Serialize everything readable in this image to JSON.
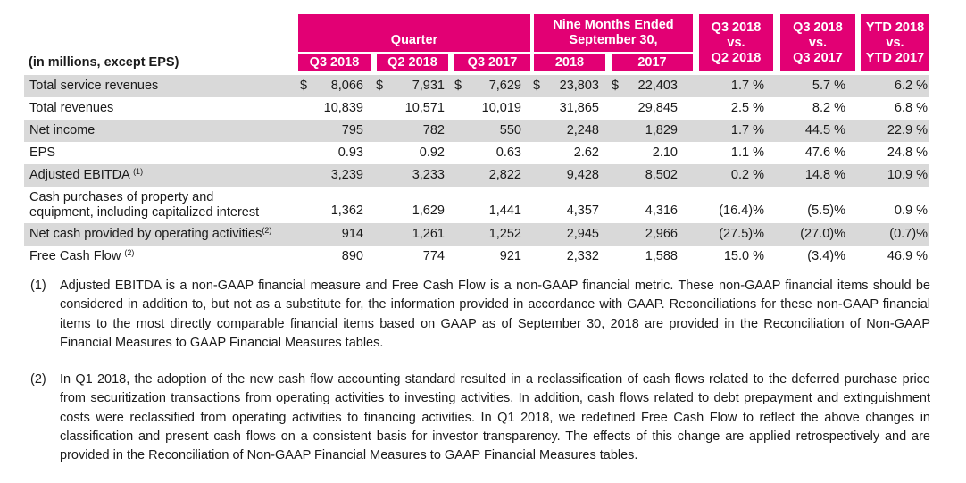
{
  "table": {
    "units_label": "(in millions, except EPS)",
    "group_headers": {
      "quarter": "Quarter",
      "nine_months_line1": "Nine Months Ended",
      "nine_months_line2": "September 30,"
    },
    "column_headers": [
      "Q3 2018",
      "Q2 2018",
      "Q3 2017",
      "2018",
      "2017"
    ],
    "comparison_headers": [
      {
        "line1": "Q3 2018",
        "line2": "vs.",
        "line3": "Q2 2018"
      },
      {
        "line1": "Q3 2018",
        "line2": "vs.",
        "line3": "Q3 2017"
      },
      {
        "line1": "YTD 2018",
        "line2": "vs.",
        "line3": "YTD 2017"
      }
    ],
    "currency_symbol": "$",
    "rows": [
      {
        "label": "Total service revenues",
        "note": "",
        "values": [
          "8,066",
          "7,931",
          "7,629",
          "23,803",
          "22,403"
        ],
        "changes": [
          "1.7 %",
          "5.7 %",
          "6.2 %"
        ],
        "shaded": true,
        "dollar": true
      },
      {
        "label": "Total revenues",
        "note": "",
        "values": [
          "10,839",
          "10,571",
          "10,019",
          "31,865",
          "29,845"
        ],
        "changes": [
          "2.5 %",
          "8.2 %",
          "6.8 %"
        ],
        "shaded": false,
        "dollar": false
      },
      {
        "label": "Net income",
        "note": "",
        "values": [
          "795",
          "782",
          "550",
          "2,248",
          "1,829"
        ],
        "changes": [
          "1.7 %",
          "44.5 %",
          "22.9 %"
        ],
        "shaded": true,
        "dollar": false
      },
      {
        "label": "EPS",
        "note": "",
        "values": [
          "0.93",
          "0.92",
          "0.63",
          "2.62",
          "2.10"
        ],
        "changes": [
          "1.1 %",
          "47.6 %",
          "24.8 %"
        ],
        "shaded": false,
        "dollar": false
      },
      {
        "label": "Adjusted EBITDA ",
        "note": "(1)",
        "values": [
          "3,239",
          "3,233",
          "2,822",
          "9,428",
          "8,502"
        ],
        "changes": [
          "0.2 %",
          "14.8 %",
          "10.9 %"
        ],
        "shaded": true,
        "dollar": false
      },
      {
        "label": "Cash purchases of property and",
        "label2": "equipment, including capitalized interest",
        "note": "",
        "values": [
          "1,362",
          "1,629",
          "1,441",
          "4,357",
          "4,316"
        ],
        "changes": [
          "(16.4)%",
          "(5.5)%",
          "0.9 %"
        ],
        "shaded": false,
        "dollar": false
      },
      {
        "label": "Net cash provided by operating activities",
        "note": "(2)",
        "values": [
          "914",
          "1,261",
          "1,252",
          "2,945",
          "2,966"
        ],
        "changes": [
          "(27.5)%",
          "(27.0)%",
          "(0.7)%"
        ],
        "shaded": true,
        "dollar": false
      },
      {
        "label": "Free Cash Flow ",
        "note": "(2)",
        "values": [
          "890",
          "774",
          "921",
          "2,332",
          "1,588"
        ],
        "changes": [
          "15.0 %",
          "(3.4)%",
          "46.9 %"
        ],
        "shaded": false,
        "dollar": false
      }
    ]
  },
  "footnotes": [
    {
      "marker": "(1)",
      "text": "Adjusted EBITDA is a non-GAAP financial measure and Free Cash Flow is a non-GAAP financial metric. These non-GAAP financial items should be considered in addition to, but not as a substitute for, the information provided in accordance with GAAP. Reconciliations for these non-GAAP financial items to the most directly comparable financial items based on GAAP as of September 30, 2018 are provided in the Reconciliation of Non-GAAP Financial Measures to GAAP Financial Measures tables."
    },
    {
      "marker": "(2)",
      "text": "In Q1 2018, the adoption of the new cash flow accounting standard resulted in a reclassification of cash flows related to the deferred purchase price from securitization transactions from operating activities to investing activities. In addition, cash flows related to debt prepayment and extinguishment costs were reclassified from operating activities to financing activities. In Q1 2018, we redefined Free Cash Flow to reflect the above changes in classification and present cash flows on a consistent basis for investor transparency. The effects of this change are applied retrospectively and are provided in the Reconciliation of Non-GAAP Financial Measures to GAAP Financial Measures tables."
    }
  ],
  "colors": {
    "header_bg": "#e20074",
    "row_shade": "#d9d9d9"
  }
}
